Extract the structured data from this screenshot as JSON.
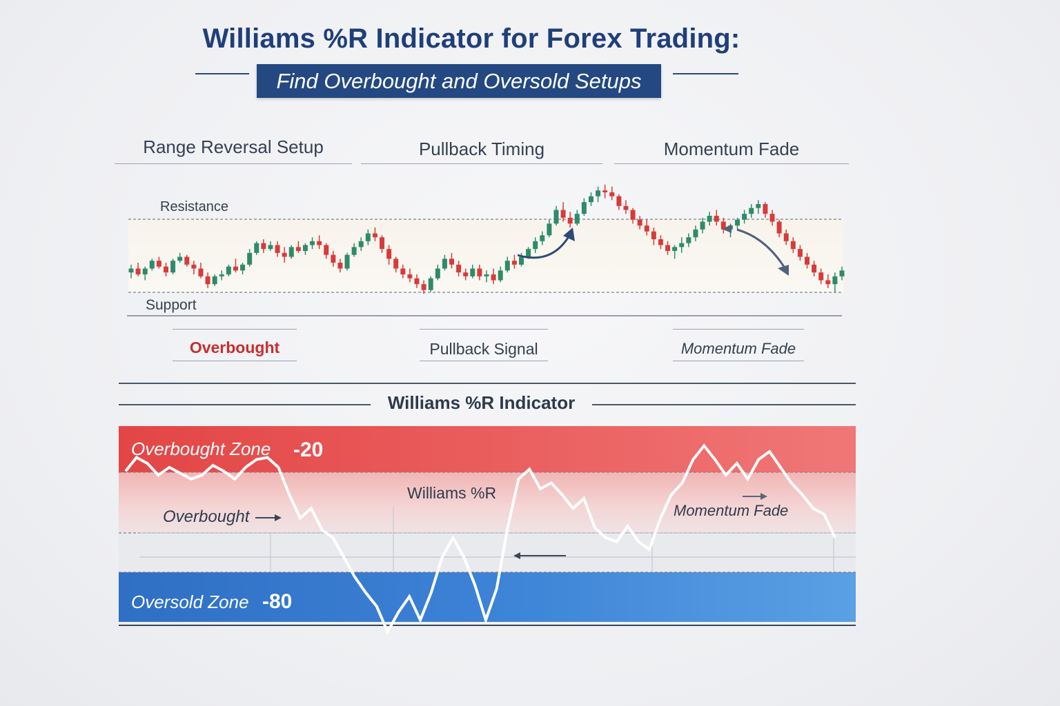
{
  "header": {
    "title": "Williams %R Indicator for Forex Trading:",
    "subtitle": "Find Overbought and Oversold Setups"
  },
  "sections": [
    {
      "title": "Range Reversal Setup",
      "signal": "Overbought"
    },
    {
      "title": "Pullback Timing",
      "signal": "Pullback Signal"
    },
    {
      "title": "Momentum Fade",
      "signal": "Momentum Fade"
    }
  ],
  "price_chart": {
    "resistance_label": "Resistance",
    "support_label": "Support"
  },
  "indicator_panel": {
    "title": "Williams %R Indicator",
    "overbought_zone_label": "Overbought Zone",
    "overbought_value": "-20",
    "oversold_zone_label": "Oversold Zone",
    "oversold_value": "-80",
    "line_label": "Williams %R",
    "overbought_annotation": "Overbought",
    "momentum_annotation": "Momentum Fade"
  },
  "colors": {
    "title_blue": "#1f3f7a",
    "bullish": "#2e8b6a",
    "bearish": "#d83a3a",
    "overbought_zone": "#e04a4a",
    "oversold_zone": "#3a7dd0"
  },
  "chart_data": [
    {
      "type": "candlestick",
      "title": "",
      "levels": {
        "resistance": "Resistance",
        "support": "Support"
      },
      "ohlc": [
        [
          48,
          52,
          45,
          50
        ],
        [
          50,
          53,
          46,
          47
        ],
        [
          47,
          51,
          44,
          50
        ],
        [
          50,
          55,
          49,
          54
        ],
        [
          54,
          56,
          50,
          51
        ],
        [
          51,
          53,
          46,
          48
        ],
        [
          48,
          55,
          47,
          54
        ],
        [
          54,
          58,
          53,
          56
        ],
        [
          56,
          57,
          51,
          52
        ],
        [
          52,
          54,
          47,
          50
        ],
        [
          50,
          53,
          45,
          46
        ],
        [
          46,
          48,
          40,
          42
        ],
        [
          42,
          47,
          41,
          46
        ],
        [
          46,
          49,
          44,
          47
        ],
        [
          47,
          52,
          46,
          51
        ],
        [
          51,
          55,
          48,
          49
        ],
        [
          49,
          53,
          47,
          52
        ],
        [
          52,
          60,
          51,
          58
        ],
        [
          58,
          64,
          57,
          63
        ],
        [
          63,
          65,
          58,
          60
        ],
        [
          60,
          64,
          59,
          62
        ],
        [
          62,
          64,
          56,
          58
        ],
        [
          58,
          61,
          53,
          56
        ],
        [
          56,
          62,
          55,
          61
        ],
        [
          61,
          64,
          58,
          59
        ],
        [
          59,
          63,
          57,
          62
        ],
        [
          62,
          66,
          60,
          64
        ],
        [
          64,
          67,
          60,
          62
        ],
        [
          62,
          63,
          55,
          57
        ],
        [
          57,
          59,
          51,
          53
        ],
        [
          53,
          55,
          48,
          50
        ],
        [
          50,
          58,
          49,
          57
        ],
        [
          57,
          63,
          56,
          61
        ],
        [
          61,
          66,
          59,
          64
        ],
        [
          64,
          70,
          62,
          68
        ],
        [
          68,
          71,
          64,
          66
        ],
        [
          66,
          67,
          58,
          60
        ],
        [
          60,
          62,
          52,
          55
        ],
        [
          55,
          56,
          48,
          50
        ],
        [
          50,
          52,
          45,
          47
        ],
        [
          47,
          50,
          43,
          45
        ],
        [
          45,
          47,
          40,
          42
        ],
        [
          42,
          44,
          37,
          39
        ],
        [
          39,
          46,
          38,
          45
        ],
        [
          45,
          52,
          44,
          50
        ],
        [
          50,
          57,
          49,
          55
        ],
        [
          55,
          58,
          50,
          52
        ],
        [
          52,
          54,
          46,
          48
        ],
        [
          48,
          50,
          44,
          46
        ],
        [
          46,
          52,
          45,
          50
        ],
        [
          50,
          52,
          44,
          46
        ],
        [
          46,
          49,
          43,
          47
        ],
        [
          47,
          50,
          42,
          44
        ],
        [
          44,
          51,
          43,
          49
        ],
        [
          49,
          56,
          48,
          54
        ],
        [
          54,
          57,
          50,
          52
        ],
        [
          52,
          58,
          51,
          56
        ],
        [
          56,
          61,
          55,
          60
        ],
        [
          60,
          66,
          58,
          64
        ],
        [
          64,
          69,
          62,
          67
        ],
        [
          67,
          75,
          66,
          73
        ],
        [
          73,
          82,
          72,
          80
        ],
        [
          80,
          84,
          74,
          76
        ],
        [
          76,
          79,
          71,
          73
        ],
        [
          73,
          80,
          72,
          78
        ],
        [
          78,
          86,
          77,
          84
        ],
        [
          84,
          89,
          82,
          87
        ],
        [
          87,
          92,
          84,
          90
        ],
        [
          90,
          93,
          86,
          89
        ],
        [
          89,
          92,
          85,
          87
        ],
        [
          87,
          88,
          80,
          82
        ],
        [
          82,
          85,
          78,
          80
        ],
        [
          80,
          81,
          73,
          75
        ],
        [
          75,
          77,
          70,
          72
        ],
        [
          72,
          75,
          67,
          69
        ],
        [
          69,
          71,
          62,
          65
        ],
        [
          65,
          67,
          60,
          62
        ],
        [
          62,
          64,
          57,
          59
        ],
        [
          59,
          62,
          55,
          61
        ],
        [
          61,
          66,
          58,
          63
        ],
        [
          63,
          68,
          61,
          66
        ],
        [
          66,
          72,
          64,
          70
        ],
        [
          70,
          76,
          68,
          74
        ],
        [
          74,
          79,
          72,
          77
        ],
        [
          77,
          80,
          72,
          74
        ],
        [
          74,
          76,
          68,
          70
        ],
        [
          70,
          73,
          66,
          72
        ],
        [
          72,
          76,
          70,
          75
        ],
        [
          75,
          80,
          73,
          78
        ],
        [
          78,
          83,
          76,
          81
        ],
        [
          81,
          85,
          78,
          83
        ],
        [
          83,
          84,
          76,
          78
        ],
        [
          78,
          80,
          72,
          74
        ],
        [
          74,
          75,
          66,
          68
        ],
        [
          68,
          70,
          62,
          64
        ],
        [
          64,
          66,
          58,
          60
        ],
        [
          60,
          62,
          54,
          56
        ],
        [
          56,
          58,
          50,
          52
        ],
        [
          52,
          54,
          46,
          48
        ],
        [
          48,
          50,
          42,
          44
        ],
        [
          44,
          47,
          40,
          42
        ],
        [
          42,
          48,
          38,
          46
        ],
        [
          46,
          51,
          44,
          49
        ]
      ]
    },
    {
      "type": "line",
      "title": "Williams %R Indicator",
      "series": [
        {
          "name": "Williams %R",
          "values": [
            -16,
            -9,
            -12,
            -18,
            -14,
            -17,
            -20,
            -18,
            -13,
            -16,
            -20,
            -14,
            -10,
            -9,
            -14,
            -28,
            -40,
            -35,
            -46,
            -50,
            -60,
            -70,
            -78,
            -85,
            -98,
            -88,
            -80,
            -92,
            -78,
            -60,
            -50,
            -60,
            -74,
            -92,
            -76,
            -45,
            -20,
            -15,
            -25,
            -22,
            -28,
            -35,
            -30,
            -45,
            -50,
            -52,
            -44,
            -52,
            -56,
            -40,
            -28,
            -22,
            -10,
            -3,
            -10,
            -18,
            -12,
            -20,
            -10,
            -6,
            -14,
            -22,
            -28,
            -35,
            -38,
            -50
          ]
        }
      ],
      "ylim": [
        -100,
        0
      ],
      "reference_lines": [
        -20,
        -80
      ]
    }
  ]
}
